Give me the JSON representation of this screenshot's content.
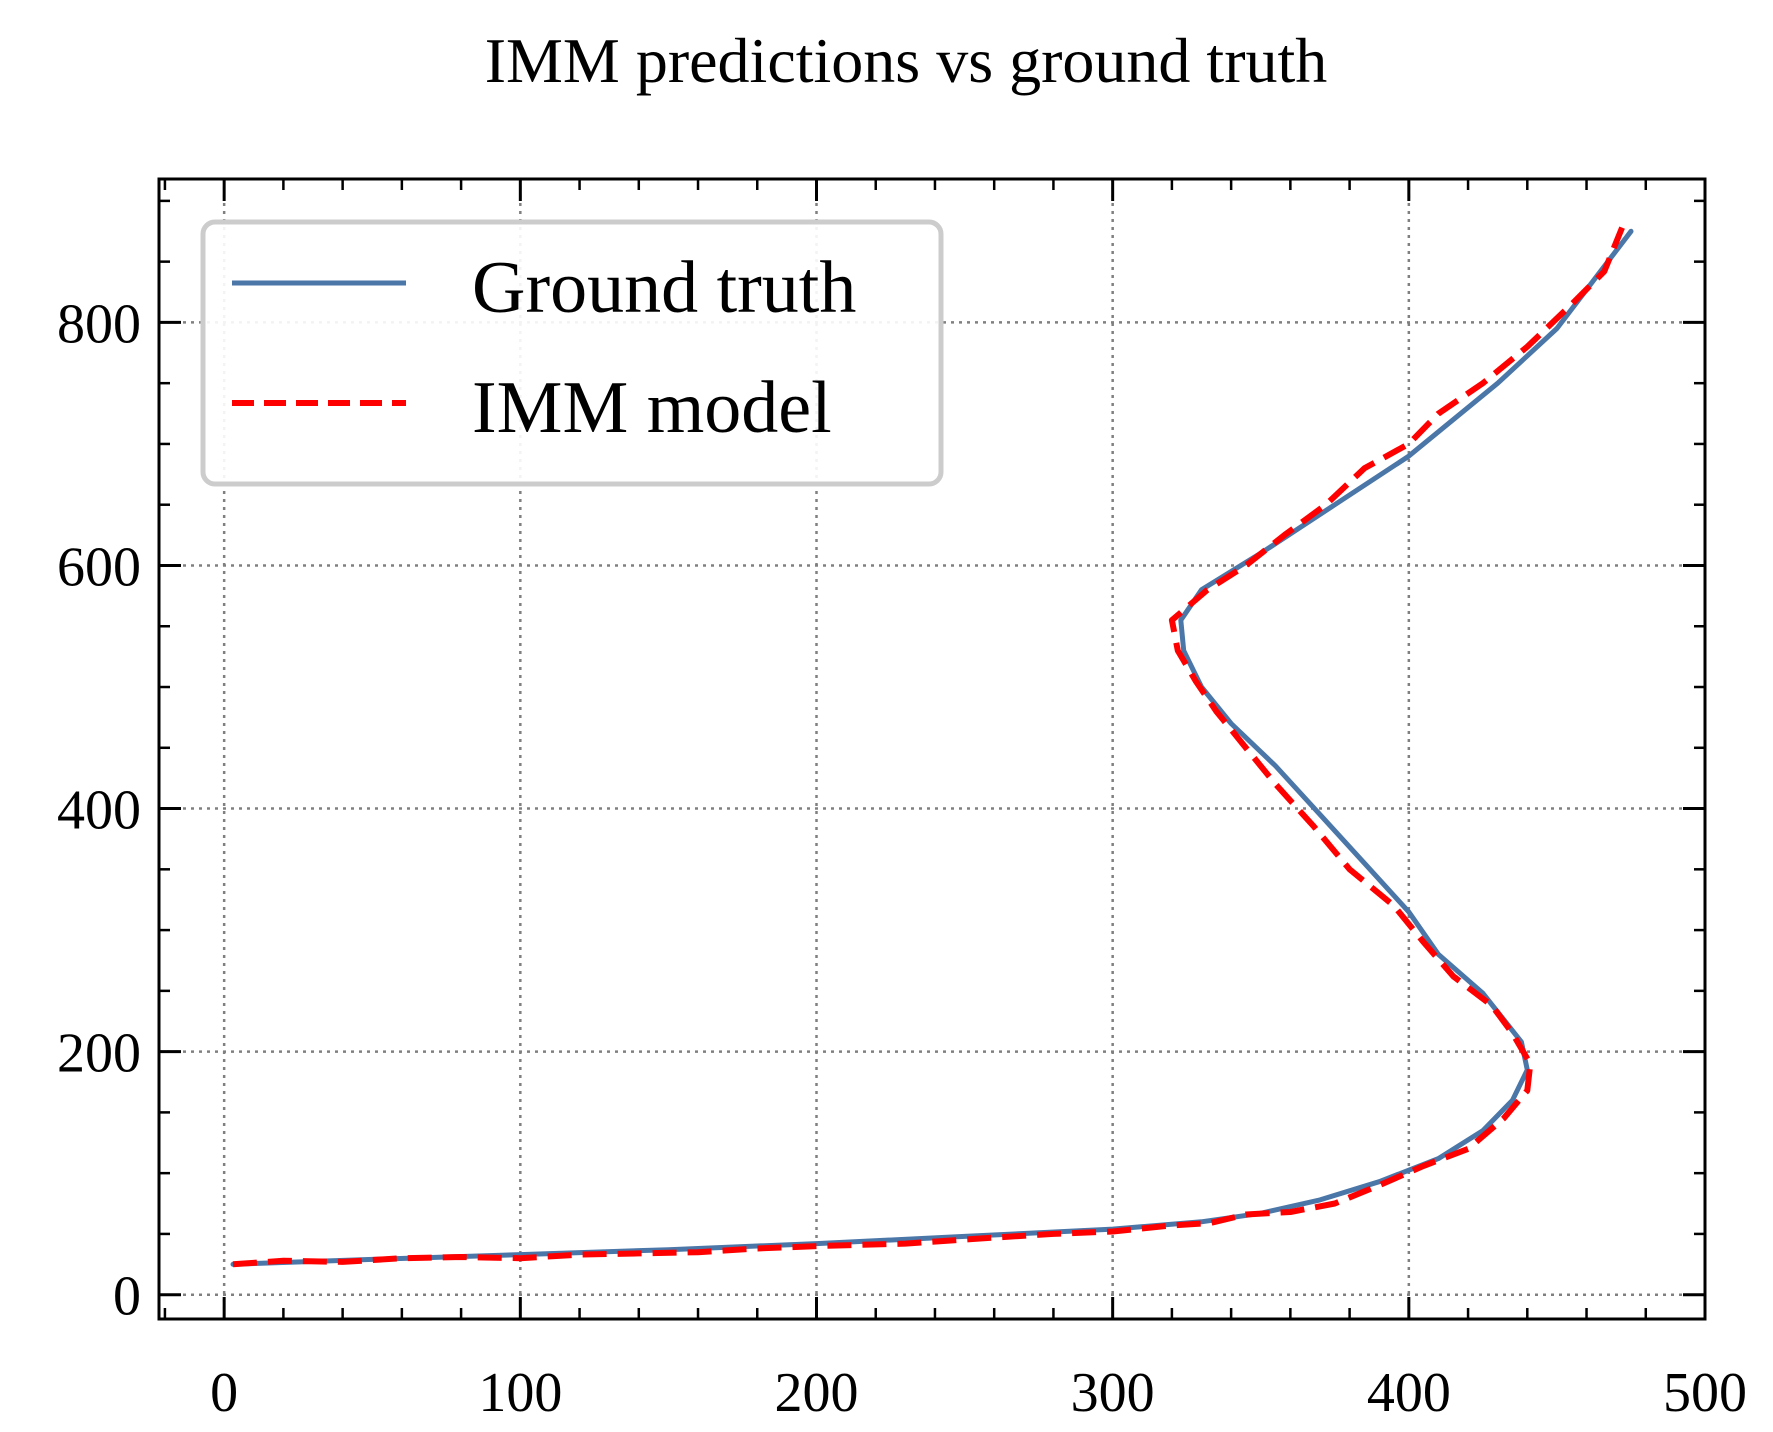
{
  "chart_data": {
    "type": "line",
    "title": "IMM predictions vs ground truth",
    "xlabel": "",
    "ylabel": "",
    "xlim": [
      -22,
      500
    ],
    "ylim": [
      -20,
      918
    ],
    "xticks": [
      0,
      100,
      200,
      300,
      400,
      500
    ],
    "yticks": [
      0,
      200,
      400,
      600,
      800
    ],
    "grid": true,
    "legend_position": "upper-left",
    "series": [
      {
        "name": "Ground truth",
        "color": "#4a76a8",
        "style": "solid",
        "points": [
          [
            3,
            25
          ],
          [
            50,
            29
          ],
          [
            100,
            33
          ],
          [
            150,
            37
          ],
          [
            200,
            42
          ],
          [
            250,
            48
          ],
          [
            300,
            54
          ],
          [
            330,
            60
          ],
          [
            350,
            67
          ],
          [
            370,
            78
          ],
          [
            390,
            93
          ],
          [
            410,
            112
          ],
          [
            425,
            135
          ],
          [
            435,
            160
          ],
          [
            440,
            185
          ],
          [
            438,
            208
          ],
          [
            425,
            248
          ],
          [
            410,
            280
          ],
          [
            400,
            315
          ],
          [
            385,
            355
          ],
          [
            370,
            395
          ],
          [
            355,
            435
          ],
          [
            340,
            470
          ],
          [
            330,
            500
          ],
          [
            324,
            530
          ],
          [
            323,
            555
          ],
          [
            330,
            580
          ],
          [
            350,
            610
          ],
          [
            375,
            650
          ],
          [
            400,
            690
          ],
          [
            430,
            750
          ],
          [
            450,
            795
          ],
          [
            475,
            875
          ]
        ]
      },
      {
        "name": "IMM model",
        "color": "#ff0000",
        "style": "dashed",
        "points": [
          [
            3,
            25
          ],
          [
            20,
            28
          ],
          [
            40,
            27
          ],
          [
            60,
            30
          ],
          [
            80,
            31
          ],
          [
            100,
            30
          ],
          [
            120,
            33
          ],
          [
            140,
            34
          ],
          [
            160,
            35
          ],
          [
            180,
            38
          ],
          [
            200,
            40
          ],
          [
            230,
            42
          ],
          [
            260,
            47
          ],
          [
            280,
            50
          ],
          [
            300,
            52
          ],
          [
            320,
            57
          ],
          [
            333,
            59
          ],
          [
            345,
            66
          ],
          [
            360,
            68
          ],
          [
            375,
            75
          ],
          [
            390,
            90
          ],
          [
            405,
            106
          ],
          [
            420,
            120
          ],
          [
            432,
            145
          ],
          [
            440,
            168
          ],
          [
            441,
            190
          ],
          [
            435,
            215
          ],
          [
            428,
            238
          ],
          [
            415,
            262
          ],
          [
            405,
            290
          ],
          [
            395,
            320
          ],
          [
            380,
            350
          ],
          [
            368,
            385
          ],
          [
            355,
            420
          ],
          [
            345,
            450
          ],
          [
            335,
            480
          ],
          [
            328,
            505
          ],
          [
            322,
            530
          ],
          [
            320,
            555
          ],
          [
            332,
            580
          ],
          [
            345,
            600
          ],
          [
            358,
            625
          ],
          [
            372,
            650
          ],
          [
            385,
            680
          ],
          [
            400,
            700
          ],
          [
            410,
            725
          ],
          [
            425,
            750
          ],
          [
            440,
            780
          ],
          [
            455,
            815
          ],
          [
            466,
            842
          ],
          [
            472,
            878
          ]
        ]
      }
    ]
  }
}
